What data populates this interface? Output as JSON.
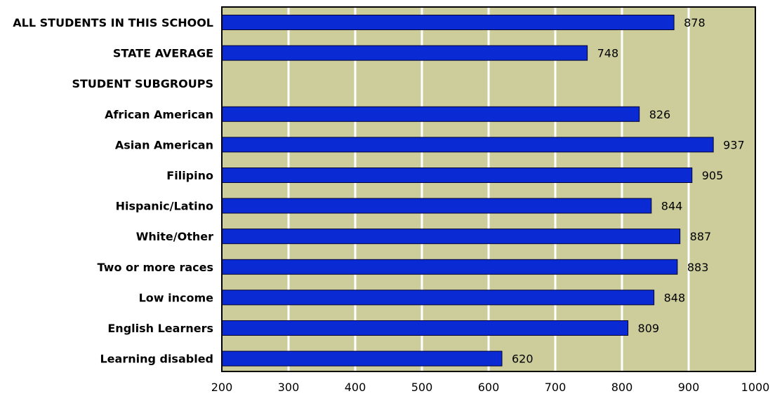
{
  "chart_data": {
    "type": "bar",
    "orientation": "horizontal",
    "categories": [
      "ALL STUDENTS IN THIS SCHOOL",
      "STATE AVERAGE",
      "STUDENT SUBGROUPS",
      "African American",
      "Asian American",
      "Filipino",
      "Hispanic/Latino",
      "White/Other",
      "Two or more races",
      "Low income",
      "English Learners",
      "Learning disabled"
    ],
    "values": [
      878,
      748,
      null,
      826,
      937,
      905,
      844,
      887,
      883,
      848,
      809,
      620
    ],
    "value_labels": [
      "878",
      "748",
      "",
      "826",
      "937",
      "905",
      "844",
      "887",
      "883",
      "848",
      "809",
      "620"
    ],
    "x_ticks": [
      "200",
      "300",
      "400",
      "500",
      "600",
      "700",
      "800",
      "900",
      "1000"
    ],
    "xlim": [
      200,
      1000
    ],
    "title": "",
    "xlabel": "",
    "ylabel": "",
    "grid": "vertical",
    "legend": "none",
    "colors": {
      "bar_fill": "#0a2ad4",
      "bar_stroke": "#000033",
      "plot_bg": "#cdcd9c",
      "grid": "#ffffff",
      "axis": "#000000"
    }
  }
}
